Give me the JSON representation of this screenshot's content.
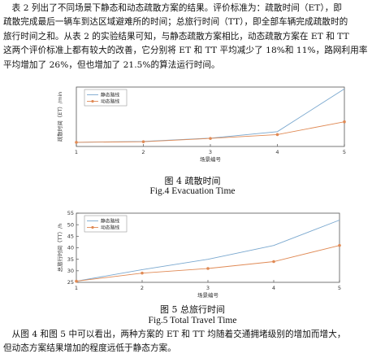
{
  "paragraph_top": [
    "　表 2 列出了不同场景下静态和动态疏散方案的结果。评价标准为：疏散时间（ET），即",
    "疏散完成最后一辆车到达区域避难所的时间；总旅行时间（TT），即全部车辆完成疏散时的",
    "旅行时间之和。从表 2 的实验结果可知，与静态疏散方案相比，动态疏散方案在 ET 和 TT",
    "这两个评价标准上都有较大的改善，它分别将 ET 和 TT 平均减少了 18%和 11%，路网利用率",
    "平均增加了 26%，但也增加了 21.5%的算法运行时间。"
  ],
  "paragraph_bottom": [
    "　从图 4 和图 5 中可以看出，两种方案的 ET 和 TT 均随着交通拥堵级别的增加而增大，",
    "但动态方案结果增加的程度远低于静态方案。"
  ],
  "figure4": {
    "caption_cn": "图 4 疏散时间",
    "caption_en": "Fig.4 Evacuation Time"
  },
  "figure5": {
    "caption_cn": "图 5 总旅行时间",
    "caption_en": "Fig.5 Total Travel Time"
  },
  "colors": {
    "static": "#7aa8cf",
    "dynamic": "#e08a55",
    "axis": "#555555"
  },
  "chart_data": [
    {
      "type": "line",
      "xlabel": "场景编号",
      "ylabel": "疏散时间（ET）/min",
      "x": [
        1,
        2,
        3,
        4,
        5
      ],
      "xticks": [
        "1",
        "2",
        "3",
        "4",
        "5"
      ],
      "xlim": [
        1,
        5
      ],
      "ylim": [
        10,
        210
      ],
      "grid": false,
      "legend_position": "top-left",
      "series": [
        {
          "name": "静态路线",
          "values": [
            24,
            27,
            38,
            60,
            204
          ],
          "marker": "none",
          "color": "#7aa8cf"
        },
        {
          "name": "动态路线",
          "values": [
            24,
            26,
            37,
            50,
            93
          ],
          "marker": "asterisk",
          "color": "#e08a55"
        }
      ]
    },
    {
      "type": "line",
      "xlabel": "场景编号",
      "ylabel": "总旅行时间（TT）/h",
      "x": [
        1,
        2,
        3,
        4,
        5
      ],
      "xticks": [
        "1",
        "2",
        "3",
        "4",
        "5"
      ],
      "xlim": [
        1,
        5
      ],
      "ylim": [
        25,
        55
      ],
      "yticks": [
        "25",
        "30",
        "35",
        "40",
        "45",
        "50",
        "55"
      ],
      "grid": false,
      "legend_position": "top-left",
      "series": [
        {
          "name": "静态路线",
          "values": [
            25.5,
            30.5,
            35,
            41,
            52
          ],
          "marker": "none",
          "color": "#7aa8cf"
        },
        {
          "name": "动态路线",
          "values": [
            25.5,
            29,
            31,
            34,
            41
          ],
          "marker": "asterisk",
          "color": "#e08a55"
        }
      ]
    }
  ]
}
